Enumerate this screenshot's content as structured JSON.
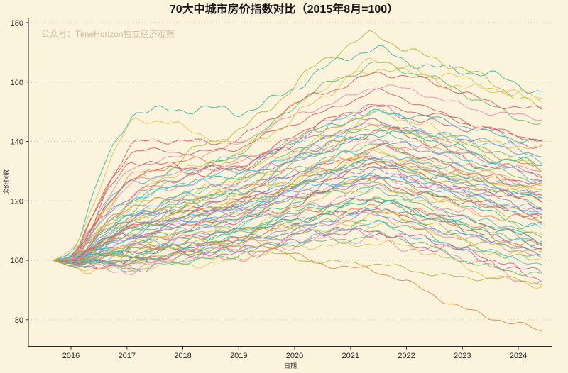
{
  "chart_data": {
    "type": "line",
    "title": "70大中城市房价指数对比（2015年8月=100）",
    "watermark": "公众号：TimeHorizon独立经济观察",
    "xlabel": "日期",
    "ylabel": "房价指数",
    "x_ticks": [
      2016,
      2017,
      2018,
      2019,
      2020,
      2021,
      2022,
      2023,
      2024
    ],
    "x_tick_labels": [
      "2016",
      "2017",
      "2018",
      "2019",
      "2020",
      "2021",
      "2022",
      "2023",
      "2024"
    ],
    "y_ticks": [
      80,
      100,
      120,
      140,
      160,
      180
    ],
    "y_tick_labels": [
      "80",
      "100",
      "120",
      "140",
      "160",
      "180"
    ],
    "x_range": [
      2015.25,
      2024.6
    ],
    "y_range": [
      71,
      182
    ],
    "x_start": 2015.67,
    "x_end": 2024.45,
    "start_value": 100,
    "grid": "horizontal-dotted",
    "legend": "none",
    "series_count": 70,
    "colors": {
      "background": "#fbf3dc",
      "axis": "#2a2a2a",
      "grid": "#c9bd99",
      "title": "#141414",
      "watermark": "#ccbf9f",
      "tick_text": "#262626"
    },
    "palette": [
      "#cf5a5e",
      "#e2883e",
      "#e3c252",
      "#aeb83c",
      "#5dba6e",
      "#35b5a0",
      "#4fb6d6",
      "#6f93cf",
      "#9b84c9",
      "#e687b3",
      "#c75f9e"
    ],
    "series_format": [
      "palette_index",
      "value_2017",
      "value_2019",
      "peak_value_2021_5",
      "final_value_2024_4"
    ],
    "series": [
      [
        5,
        152,
        149,
        171,
        157
      ],
      [
        3,
        121,
        144,
        177,
        152
      ],
      [
        2,
        149,
        139,
        166,
        155
      ],
      [
        4,
        117,
        137,
        168,
        146
      ],
      [
        0,
        139,
        141,
        164,
        150
      ],
      [
        9,
        131,
        139,
        159,
        147
      ],
      [
        0,
        137,
        137,
        157,
        139
      ],
      [
        2,
        127,
        134,
        167,
        153
      ],
      [
        6,
        128,
        133,
        150,
        134
      ],
      [
        10,
        124,
        131,
        152,
        138
      ],
      [
        1,
        130,
        134,
        148,
        131
      ],
      [
        4,
        113,
        128,
        146,
        133
      ],
      [
        5,
        120,
        130,
        151,
        140
      ],
      [
        9,
        126,
        133,
        147,
        129
      ],
      [
        0,
        133,
        130,
        144,
        128
      ],
      [
        2,
        118,
        127,
        149,
        136
      ],
      [
        3,
        110,
        125,
        145,
        130
      ],
      [
        6,
        122,
        129,
        143,
        127
      ],
      [
        7,
        116,
        126,
        147,
        135
      ],
      [
        8,
        112,
        124,
        142,
        129
      ],
      [
        0,
        129,
        132,
        153,
        141
      ],
      [
        9,
        121,
        128,
        141,
        125
      ],
      [
        5,
        114,
        123,
        144,
        132
      ],
      [
        1,
        118,
        124,
        138,
        124
      ],
      [
        2,
        112,
        121,
        136,
        122
      ],
      [
        3,
        108,
        119,
        133,
        120
      ],
      [
        4,
        115,
        122,
        139,
        126
      ],
      [
        5,
        110,
        118,
        134,
        121
      ],
      [
        6,
        117,
        123,
        137,
        123
      ],
      [
        7,
        109,
        117,
        131,
        118
      ],
      [
        7,
        113,
        120,
        135,
        122
      ],
      [
        9,
        107,
        116,
        129,
        116
      ],
      [
        10,
        114,
        121,
        138,
        125
      ],
      [
        0,
        111,
        119,
        132,
        119
      ],
      [
        1,
        108,
        115,
        128,
        114
      ],
      [
        2,
        116,
        122,
        136,
        124
      ],
      [
        3,
        106,
        114,
        127,
        113
      ],
      [
        4,
        112,
        118,
        133,
        120
      ],
      [
        5,
        105,
        113,
        126,
        112
      ],
      [
        6,
        110,
        117,
        130,
        117
      ],
      [
        7,
        107,
        114,
        128,
        115
      ],
      [
        8,
        111,
        118,
        134,
        121
      ],
      [
        9,
        104,
        112,
        125,
        111
      ],
      [
        10,
        109,
        116,
        131,
        118
      ],
      [
        0,
        106,
        113,
        127,
        114
      ],
      [
        1,
        112,
        119,
        135,
        123
      ],
      [
        2,
        105,
        111,
        125,
        110
      ],
      [
        6,
        108,
        115,
        129,
        116
      ],
      [
        4,
        103,
        110,
        122,
        108
      ],
      [
        5,
        101,
        108,
        119,
        105
      ],
      [
        6,
        104,
        111,
        123,
        109
      ],
      [
        7,
        100,
        106,
        117,
        103
      ],
      [
        4,
        102,
        109,
        120,
        106
      ],
      [
        9,
        99,
        105,
        115,
        101
      ],
      [
        10,
        103,
        110,
        121,
        107
      ],
      [
        0,
        100,
        107,
        118,
        104
      ],
      [
        1,
        102,
        108,
        119,
        105
      ],
      [
        2,
        98,
        104,
        114,
        100
      ],
      [
        3,
        101,
        107,
        116,
        102
      ],
      [
        4,
        99,
        105,
        113,
        99
      ],
      [
        5,
        102,
        109,
        120,
        106
      ],
      [
        6,
        97,
        103,
        112,
        98
      ],
      [
        7,
        100,
        106,
        116,
        102
      ],
      [
        10,
        98,
        103,
        110,
        95
      ],
      [
        9,
        97,
        102,
        108,
        93
      ],
      [
        10,
        99,
        104,
        111,
        96
      ],
      [
        2,
        96,
        101,
        107,
        91
      ],
      [
        4,
        98,
        102,
        109,
        94
      ],
      [
        1,
        104,
        107,
        96,
        75
      ],
      [
        3,
        101,
        104,
        98,
        92
      ]
    ]
  }
}
